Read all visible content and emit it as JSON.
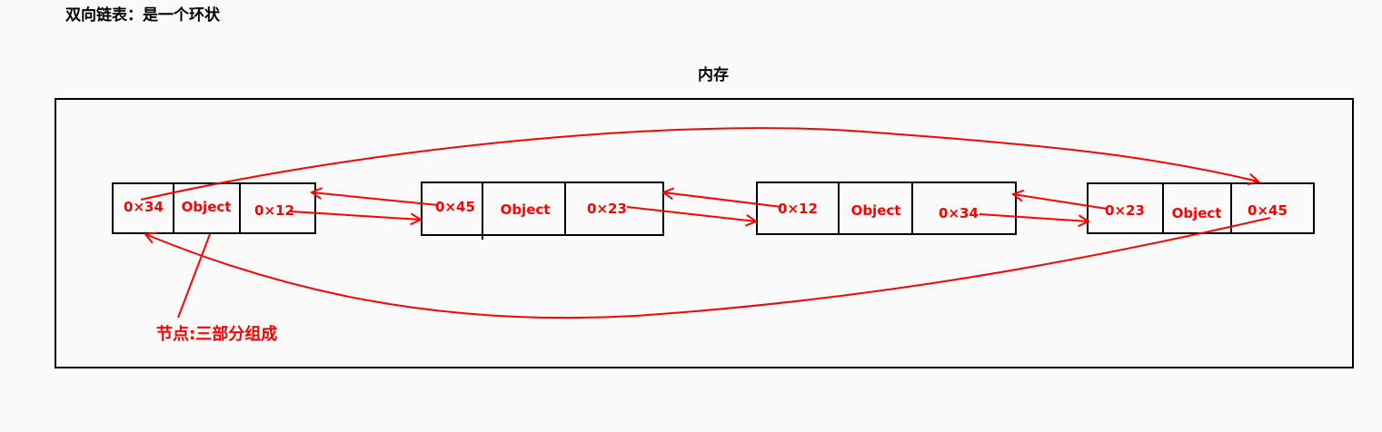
{
  "title": "双向链表：是一个环状",
  "memory_label": "内存",
  "note": "节点:三部分组成",
  "colors": {
    "ink": "#000000",
    "accent": "#ff0000",
    "background": "#fafafa"
  },
  "nodes": [
    {
      "prev": "0×34",
      "data": "Object",
      "next": "0×12"
    },
    {
      "prev": "0×45",
      "data": "Object",
      "next": "0×23"
    },
    {
      "prev": "0×12",
      "data": "Object",
      "next": "0×34"
    },
    {
      "prev": "0×23",
      "data": "Object",
      "next": "0×45"
    }
  ]
}
